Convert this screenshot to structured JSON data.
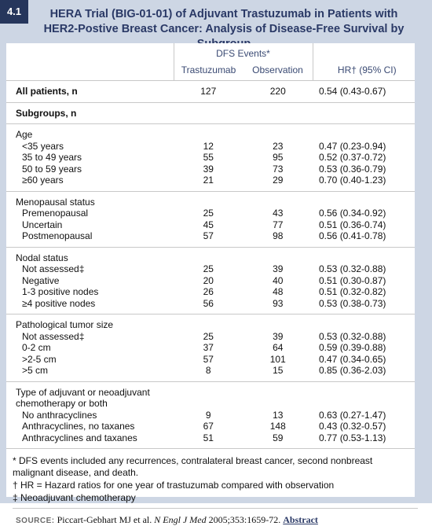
{
  "badge": "4.1",
  "title": "HERA Trial (BIG-01-01) of Adjuvant Trastuzumab in Patients with HER2-Postive Breast Cancer: Analysis of Disease-Free Survival by Subgroup",
  "table": {
    "group_header": "DFS Events*",
    "columns": [
      "Trastuzumab",
      "Observation",
      "HR† (95% CI)"
    ],
    "all_patients": [
      "All patients, n",
      "127",
      "220",
      "0.54 (0.43-0.67)"
    ],
    "subgroups_label": "Subgroups, n",
    "sections": [
      {
        "title": "Age",
        "rows": [
          [
            "<35 years",
            "12",
            "23",
            "0.47 (0.23-0.94)"
          ],
          [
            "35 to 49 years",
            "55",
            "95",
            "0.52 (0.37-0.72)"
          ],
          [
            "50 to 59 years",
            "39",
            "73",
            "0.53 (0.36-0.79)"
          ],
          [
            "≥60 years",
            "21",
            "29",
            "0.70 (0.40-1.23)"
          ]
        ]
      },
      {
        "title": "Menopausal status",
        "rows": [
          [
            "Premenopausal",
            "25",
            "43",
            "0.56 (0.34-0.92)"
          ],
          [
            "Uncertain",
            "45",
            "77",
            "0.51 (0.36-0.74)"
          ],
          [
            "Postmenopausal",
            "57",
            "98",
            "0.56 (0.41-0.78)"
          ]
        ]
      },
      {
        "title": "Nodal status",
        "rows": [
          [
            "Not assessed‡",
            "25",
            "39",
            "0.53 (0.32-0.88)"
          ],
          [
            "Negative",
            "20",
            "40",
            "0.51 (0.30-0.87)"
          ],
          [
            "1-3 positive nodes",
            "26",
            "48",
            "0.51 (0.32-0.82)"
          ],
          [
            "≥4 positive nodes",
            "56",
            "93",
            "0.53 (0.38-0.73)"
          ]
        ]
      },
      {
        "title": "Pathological tumor size",
        "rows": [
          [
            "Not assessed‡",
            "25",
            "39",
            "0.53 (0.32-0.88)"
          ],
          [
            "0-2 cm",
            "37",
            "64",
            "0.59 (0.39-0.88)"
          ],
          [
            ">2-5 cm",
            "57",
            "101",
            "0.47 (0.34-0.65)"
          ],
          [
            ">5 cm",
            "8",
            "15",
            "0.85 (0.36-2.03)"
          ]
        ]
      },
      {
        "title": "Type of adjuvant or neoadjuvant chemotherapy or both",
        "rows": [
          [
            "No anthracyclines",
            "9",
            "13",
            "0.63 (0.27-1.47)"
          ],
          [
            "Anthracyclines, no taxanes",
            "67",
            "148",
            "0.43 (0.32-0.57)"
          ],
          [
            "Anthracyclines and taxanes",
            "51",
            "59",
            "0.77 (0.53-1.13)"
          ]
        ]
      }
    ]
  },
  "footnotes": [
    "* DFS events included any recurrences, contralateral breast cancer, second nonbreast malignant disease, and death.",
    "† HR = Hazard ratios for one year of trastuzumab compared with observation",
    "‡ Neoadjuvant chemotherapy"
  ],
  "source": {
    "label": "SOURCE:",
    "authors": "Piccart-Gebhart MJ et al.",
    "journal": "N Engl J Med",
    "citation": "2005;353:1659-72.",
    "link": "Abstract"
  }
}
